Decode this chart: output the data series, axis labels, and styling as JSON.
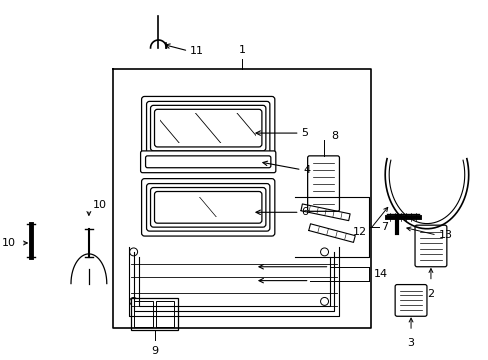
{
  "background_color": "#ffffff",
  "line_color": "#000000",
  "fig_width": 4.89,
  "fig_height": 3.6,
  "dpi": 100,
  "fontsize": 8
}
